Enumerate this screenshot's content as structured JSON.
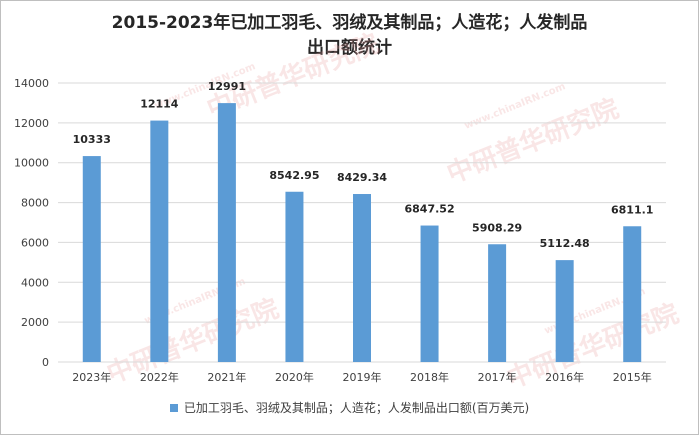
{
  "chart_data": {
    "type": "bar",
    "title_line1": "2015-2023年已加工羽毛、羽绒及其制品；人造花；人发制品",
    "title_line2": "出口额统计",
    "categories": [
      "2023年",
      "2022年",
      "2021年",
      "2020年",
      "2019年",
      "2018年",
      "2017年",
      "2016年",
      "2015年"
    ],
    "values": [
      10333,
      12114,
      12991,
      8542.95,
      8429.34,
      6847.52,
      5908.29,
      5112.48,
      6811.1
    ],
    "value_labels": [
      "10333",
      "12114",
      "12991",
      "8542.95",
      "8429.34",
      "6847.52",
      "5908.29",
      "5112.48",
      "6811.1"
    ],
    "ylim": [
      0,
      14000
    ],
    "yticks": [
      0,
      2000,
      4000,
      6000,
      8000,
      10000,
      12000,
      14000
    ],
    "grid": true,
    "legend_position": "bottom",
    "series": [
      {
        "name": "已加工羽毛、羽绒及其制品；人造花；人发制品出口额(百万美元)",
        "color": "#5b9bd5"
      }
    ]
  },
  "watermark": {
    "text": "中研普华研究院",
    "url": "www.chinaIRN.com"
  }
}
